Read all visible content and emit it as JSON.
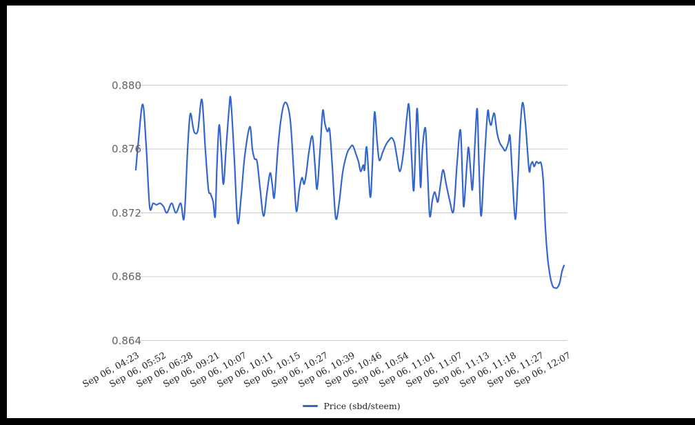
{
  "colors": {
    "line": "#3366cc",
    "grid": "#cccccc",
    "y_label": "#636363",
    "x_label": "#222222",
    "frame": "#000000",
    "background": "#ffffff"
  },
  "legend": {
    "label": "Price (sbd/steem)"
  },
  "chart_data": {
    "type": "line",
    "title": "",
    "xlabel": "",
    "ylabel": "",
    "grid": "horizontal-only",
    "legend_position": "bottom-center",
    "ylim": [
      0.864,
      0.88
    ],
    "y_ticks": [
      {
        "label": "0.880",
        "value": 0.88
      },
      {
        "label": "0.876",
        "value": 0.876
      },
      {
        "label": "0.872",
        "value": 0.872
      },
      {
        "label": "0.868",
        "value": 0.868
      },
      {
        "label": "0.864",
        "value": 0.864
      }
    ],
    "x_tick_labels": [
      "Sep 06, 04:23",
      "Sep 06, 05:52",
      "Sep 06, 06:28",
      "Sep 06, 09:21",
      "Sep 06, 10:07",
      "Sep 06, 10:11",
      "Sep 06, 10:15",
      "Sep 06, 10:27",
      "Sep 06, 10:39",
      "Sep 06, 10:46",
      "Sep 06, 10:54",
      "Sep 06, 11:01",
      "Sep 06, 11:07",
      "Sep 06, 11:13",
      "Sep 06, 11:18",
      "Sep 06, 11:27",
      "Sep 06, 12:07"
    ],
    "series": [
      {
        "name": "Price (sbd/steem)",
        "color": "#3366cc",
        "points": [
          [
            0.0,
            0.8747
          ],
          [
            0.006,
            0.8765
          ],
          [
            0.016,
            0.8788
          ],
          [
            0.024,
            0.8762
          ],
          [
            0.032,
            0.8724
          ],
          [
            0.04,
            0.8726
          ],
          [
            0.048,
            0.8725
          ],
          [
            0.056,
            0.8726
          ],
          [
            0.064,
            0.8724
          ],
          [
            0.072,
            0.872
          ],
          [
            0.083,
            0.8726
          ],
          [
            0.093,
            0.872
          ],
          [
            0.104,
            0.8726
          ],
          [
            0.112,
            0.8717
          ],
          [
            0.12,
            0.876
          ],
          [
            0.126,
            0.8782
          ],
          [
            0.133,
            0.8773
          ],
          [
            0.137,
            0.877
          ],
          [
            0.144,
            0.8772
          ],
          [
            0.153,
            0.8791
          ],
          [
            0.161,
            0.876
          ],
          [
            0.168,
            0.8735
          ],
          [
            0.173,
            0.8732
          ],
          [
            0.179,
            0.8727
          ],
          [
            0.184,
            0.8718
          ],
          [
            0.188,
            0.875
          ],
          [
            0.193,
            0.8775
          ],
          [
            0.198,
            0.8758
          ],
          [
            0.203,
            0.8738
          ],
          [
            0.209,
            0.876
          ],
          [
            0.216,
            0.8785
          ],
          [
            0.22,
            0.8791
          ],
          [
            0.228,
            0.8755
          ],
          [
            0.236,
            0.8714
          ],
          [
            0.244,
            0.873
          ],
          [
            0.252,
            0.8755
          ],
          [
            0.264,
            0.8774
          ],
          [
            0.27,
            0.876
          ],
          [
            0.275,
            0.8754
          ],
          [
            0.281,
            0.8752
          ],
          [
            0.288,
            0.8735
          ],
          [
            0.296,
            0.8718
          ],
          [
            0.304,
            0.8733
          ],
          [
            0.311,
            0.8745
          ],
          [
            0.316,
            0.8738
          ],
          [
            0.321,
            0.873
          ],
          [
            0.329,
            0.876
          ],
          [
            0.337,
            0.878
          ],
          [
            0.345,
            0.8789
          ],
          [
            0.353,
            0.8786
          ],
          [
            0.359,
            0.8775
          ],
          [
            0.366,
            0.8745
          ],
          [
            0.372,
            0.8721
          ],
          [
            0.379,
            0.8735
          ],
          [
            0.385,
            0.8742
          ],
          [
            0.39,
            0.8738
          ],
          [
            0.395,
            0.8745
          ],
          [
            0.401,
            0.8758
          ],
          [
            0.409,
            0.8768
          ],
          [
            0.415,
            0.875
          ],
          [
            0.42,
            0.8735
          ],
          [
            0.427,
            0.876
          ],
          [
            0.433,
            0.8784
          ],
          [
            0.438,
            0.8776
          ],
          [
            0.444,
            0.8771
          ],
          [
            0.449,
            0.8772
          ],
          [
            0.455,
            0.875
          ],
          [
            0.463,
            0.8717
          ],
          [
            0.471,
            0.8726
          ],
          [
            0.479,
            0.8745
          ],
          [
            0.489,
            0.8757
          ],
          [
            0.497,
            0.8761
          ],
          [
            0.503,
            0.8762
          ],
          [
            0.511,
            0.8756
          ],
          [
            0.516,
            0.8752
          ],
          [
            0.521,
            0.8746
          ],
          [
            0.527,
            0.875
          ],
          [
            0.53,
            0.8747
          ],
          [
            0.535,
            0.8761
          ],
          [
            0.543,
            0.873
          ],
          [
            0.548,
            0.875
          ],
          [
            0.553,
            0.8783
          ],
          [
            0.559,
            0.8765
          ],
          [
            0.564,
            0.8753
          ],
          [
            0.572,
            0.8758
          ],
          [
            0.58,
            0.8763
          ],
          [
            0.588,
            0.8766
          ],
          [
            0.593,
            0.8767
          ],
          [
            0.599,
            0.8764
          ],
          [
            0.605,
            0.8755
          ],
          [
            0.612,
            0.8746
          ],
          [
            0.62,
            0.8758
          ],
          [
            0.628,
            0.878
          ],
          [
            0.633,
            0.8787
          ],
          [
            0.639,
            0.8755
          ],
          [
            0.644,
            0.8734
          ],
          [
            0.649,
            0.877
          ],
          [
            0.652,
            0.8785
          ],
          [
            0.657,
            0.8755
          ],
          [
            0.66,
            0.8736
          ],
          [
            0.664,
            0.876
          ],
          [
            0.671,
            0.8773
          ],
          [
            0.676,
            0.8745
          ],
          [
            0.681,
            0.8718
          ],
          [
            0.687,
            0.8728
          ],
          [
            0.692,
            0.8733
          ],
          [
            0.696,
            0.873
          ],
          [
            0.7,
            0.8727
          ],
          [
            0.706,
            0.8738
          ],
          [
            0.712,
            0.8747
          ],
          [
            0.719,
            0.8738
          ],
          [
            0.727,
            0.8728
          ],
          [
            0.736,
            0.8721
          ],
          [
            0.744,
            0.875
          ],
          [
            0.752,
            0.8772
          ],
          [
            0.757,
            0.874
          ],
          [
            0.76,
            0.8724
          ],
          [
            0.767,
            0.875
          ],
          [
            0.771,
            0.8761
          ],
          [
            0.776,
            0.8745
          ],
          [
            0.78,
            0.8735
          ],
          [
            0.786,
            0.8765
          ],
          [
            0.791,
            0.8785
          ],
          [
            0.795,
            0.875
          ],
          [
            0.8,
            0.8718
          ],
          [
            0.807,
            0.875
          ],
          [
            0.815,
            0.8783
          ],
          [
            0.819,
            0.8778
          ],
          [
            0.823,
            0.8775
          ],
          [
            0.827,
            0.878
          ],
          [
            0.831,
            0.8782
          ],
          [
            0.837,
            0.877
          ],
          [
            0.843,
            0.8764
          ],
          [
            0.85,
            0.8761
          ],
          [
            0.856,
            0.8759
          ],
          [
            0.863,
            0.8764
          ],
          [
            0.867,
            0.8768
          ],
          [
            0.872,
            0.8745
          ],
          [
            0.879,
            0.8716
          ],
          [
            0.885,
            0.874
          ],
          [
            0.89,
            0.877
          ],
          [
            0.896,
            0.8789
          ],
          [
            0.903,
            0.8775
          ],
          [
            0.911,
            0.8747
          ],
          [
            0.915,
            0.875
          ],
          [
            0.919,
            0.8752
          ],
          [
            0.923,
            0.8749
          ],
          [
            0.928,
            0.8752
          ],
          [
            0.933,
            0.8751
          ],
          [
            0.939,
            0.8751
          ],
          [
            0.944,
            0.874
          ],
          [
            0.949,
            0.871
          ],
          [
            0.954,
            0.8692
          ],
          [
            0.96,
            0.868
          ],
          [
            0.966,
            0.8674
          ],
          [
            0.971,
            0.8673
          ],
          [
            0.976,
            0.8673
          ],
          [
            0.982,
            0.8676
          ],
          [
            0.987,
            0.8683
          ],
          [
            0.992,
            0.8687
          ]
        ]
      }
    ]
  }
}
